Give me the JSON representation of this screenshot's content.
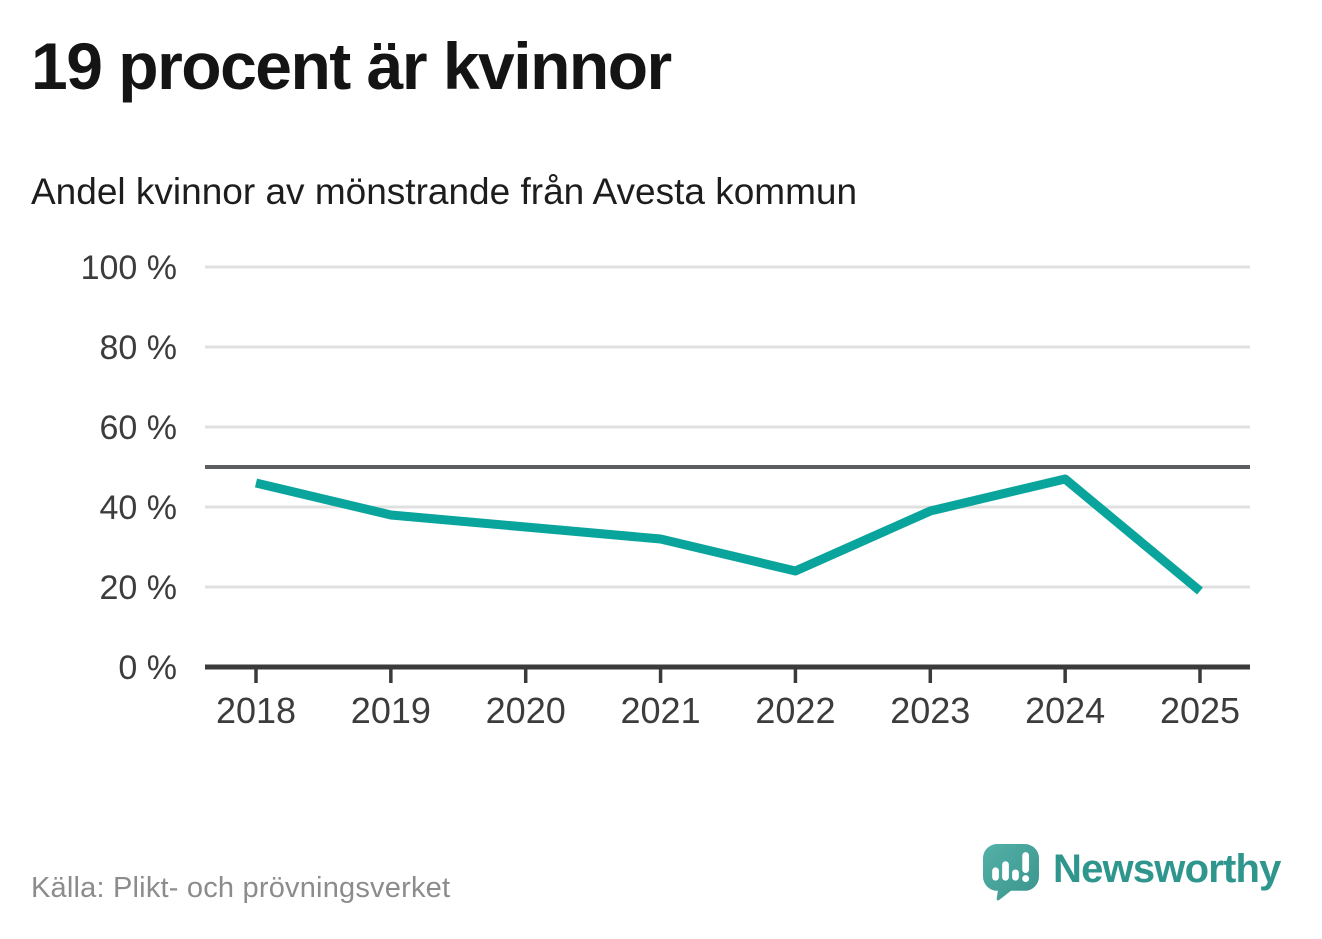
{
  "title": "19 procent är kvinnor",
  "subtitle": "Andel kvinnor av mönstrande från Avesta kommun",
  "source": "Källa: Plikt- och prövningsverket",
  "brand": {
    "name": "Newsworthy",
    "icon": "speech-bubble-bar-chart-icon"
  },
  "colors": {
    "line": "#09a59c",
    "reference_line": "#5c5e62",
    "grid": "#e0e0e0",
    "axis": "#3a3a3a",
    "title_text": "#141414",
    "subtitle_text": "#1d1d1d",
    "tick_text": "#3c3c3c",
    "source_text": "#8c8c8c",
    "brand_teal": "#2f968e",
    "logo_gradient_start": "#53b1a8",
    "logo_gradient_end": "#3a948c"
  },
  "chart_data": {
    "type": "line",
    "title": "19 procent är kvinnor",
    "subtitle": "Andel kvinnor av mönstrande från Avesta kommun",
    "x": [
      "2018",
      "2019",
      "2020",
      "2021",
      "2022",
      "2023",
      "2024",
      "2025"
    ],
    "values": [
      46,
      38,
      35,
      32,
      24,
      39,
      47,
      19
    ],
    "unit": "%",
    "ylim": [
      0,
      100
    ],
    "yticks": [
      0,
      20,
      40,
      60,
      80,
      100
    ],
    "ytick_labels": [
      "0 %",
      "20 %",
      "40 %",
      "60 %",
      "80 %",
      "100 %"
    ],
    "reference_line": 50,
    "grid": "horizontal",
    "legend": "none"
  }
}
